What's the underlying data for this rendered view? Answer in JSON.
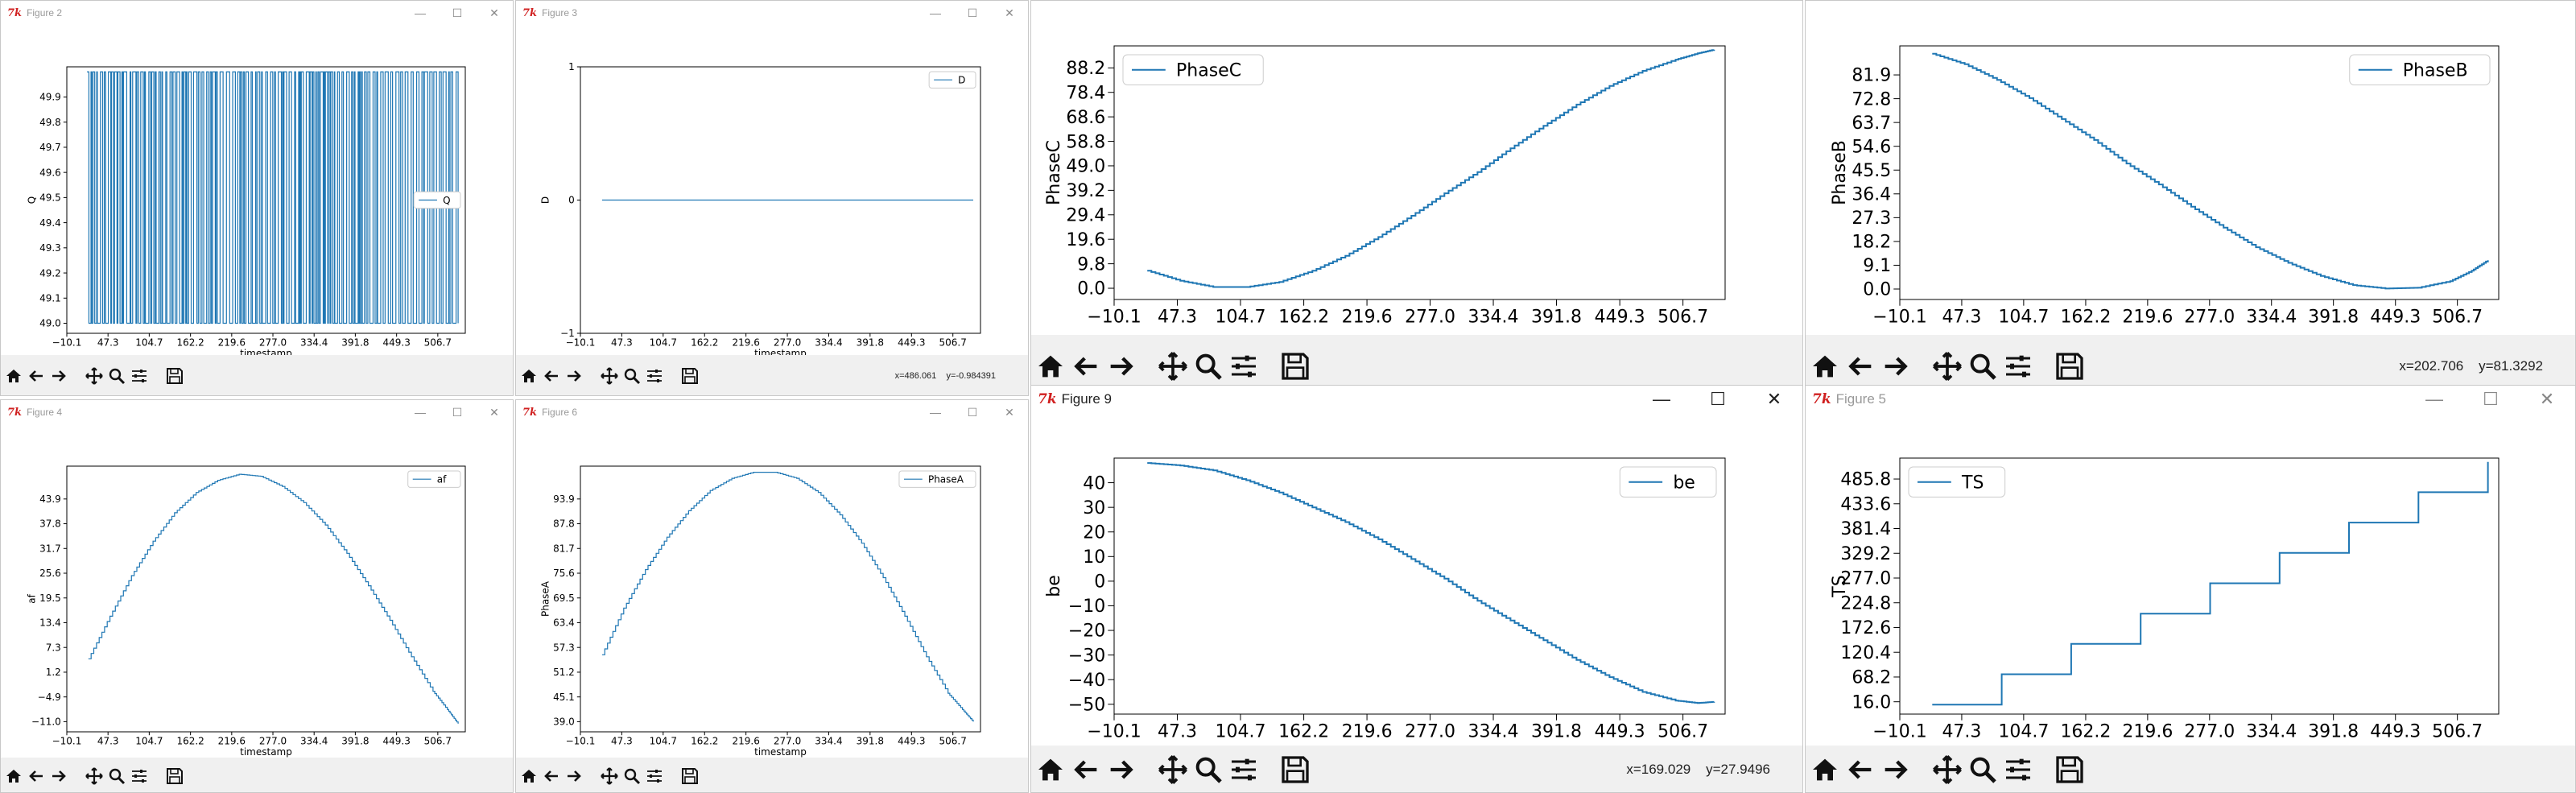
{
  "figures": [
    {
      "title": "Figure 2",
      "coords": "",
      "chart_data": {
        "type": "line",
        "legend_loc": "center-right",
        "xlabel": "timestamp",
        "ylabel": "Q",
        "xticks": [
          "−10.1",
          "47.3",
          "104.7",
          "162.2",
          "219.6",
          "277.0",
          "334.4",
          "391.8",
          "449.3",
          "506.7"
        ],
        "yticks": [
          "49.0",
          "49.1",
          "49.2",
          "49.3",
          "49.4",
          "49.5",
          "49.6",
          "49.7",
          "49.8",
          "49.9"
        ],
        "xlim": [
          -10.1,
          545
        ],
        "ylim": [
          48.96,
          50.02
        ],
        "series": [
          {
            "name": "Q",
            "shape": "square_toggle",
            "low": 49.0,
            "high": 50.0
          }
        ]
      }
    },
    {
      "title": "Figure 3",
      "coords": "x=486.061    y=-0.984391",
      "chart_data": {
        "type": "line",
        "legend_loc": "top-right",
        "xlabel": "timestamp",
        "ylabel": "D",
        "xticks": [
          "−10.1",
          "47.3",
          "104.7",
          "162.2",
          "219.6",
          "277.0",
          "334.4",
          "391.8",
          "449.3",
          "506.7"
        ],
        "yticks": [
          "−1",
          "0",
          "1"
        ],
        "xlim": [
          -10.1,
          545
        ],
        "ylim": [
          -1,
          1
        ],
        "series": [
          {
            "name": "D",
            "x": [
              20,
              535
            ],
            "y": [
              0,
              0
            ]
          }
        ]
      }
    },
    {
      "title": "",
      "coords": "",
      "chart_data": {
        "type": "line",
        "legend_loc": "top-left",
        "xlabel": "",
        "ylabel": "PhaseC",
        "xticks": [
          "−10.1",
          "47.3",
          "104.7",
          "162.2",
          "219.6",
          "277.0",
          "334.4",
          "391.8",
          "449.3",
          "506.7"
        ],
        "yticks": [
          "0.0",
          "9.8",
          "19.6",
          "29.4",
          "39.2",
          "49.0",
          "58.8",
          "68.6",
          "78.4",
          "88.2"
        ],
        "xlim": [
          -10.1,
          545
        ],
        "ylim": [
          -4.5,
          97
        ],
        "series": [
          {
            "name": "PhaseC",
            "x": [
              20,
              50,
              80,
              110,
              140,
              170,
              200,
              230,
              260,
              290,
              320,
              350,
              380,
              410,
              440,
              470,
              500,
              520,
              535
            ],
            "y": [
              7,
              3,
              0.5,
              0.5,
              2.5,
              7,
              13,
              20.5,
              29,
              38,
              46.5,
              56,
              65,
              73.5,
              81,
              87,
              91.5,
              94,
              95.5
            ]
          }
        ]
      }
    },
    {
      "title": "",
      "coords": "x=202.706    y=81.3292",
      "chart_data": {
        "type": "line",
        "legend_loc": "top-right",
        "xlabel": "",
        "ylabel": "PhaseB",
        "xticks": [
          "−10.1",
          "47.3",
          "104.7",
          "162.2",
          "219.6",
          "277.0",
          "334.4",
          "391.8",
          "449.3",
          "506.7"
        ],
        "yticks": [
          "0.0",
          "9.1",
          "18.2",
          "27.3",
          "36.4",
          "45.5",
          "54.6",
          "63.7",
          "72.8",
          "81.9"
        ],
        "xlim": [
          -10.1,
          545
        ],
        "ylim": [
          -4,
          93
        ],
        "series": [
          {
            "name": "PhaseB",
            "x": [
              20,
              50,
              80,
              110,
              140,
              170,
              200,
              230,
              260,
              290,
              320,
              350,
              380,
              410,
              440,
              470,
              500,
              520,
              535
            ],
            "y": [
              90,
              86,
              80,
              73,
              65,
              57,
              48,
              40,
              31.5,
              23.5,
              16,
              10,
              5,
              1.5,
              0.2,
              0.5,
              3,
              7,
              11
            ]
          }
        ]
      }
    },
    {
      "title": "Figure 4",
      "coords": "",
      "chart_data": {
        "type": "line",
        "legend_loc": "top-right",
        "xlabel": "timestamp",
        "ylabel": "af",
        "xticks": [
          "−10.1",
          "47.3",
          "104.7",
          "162.2",
          "219.6",
          "277.0",
          "334.4",
          "391.8",
          "449.3",
          "506.7"
        ],
        "yticks": [
          "−11.0",
          "−4.9",
          "1.2",
          "7.3",
          "13.4",
          "19.5",
          "25.6",
          "31.7",
          "37.8",
          "43.9"
        ],
        "xlim": [
          -10.1,
          545
        ],
        "ylim": [
          -13.5,
          52
        ],
        "series": [
          {
            "name": "af",
            "x": [
              20,
              50,
              80,
              110,
              140,
              170,
              200,
              230,
              260,
              290,
              320,
              350,
              380,
              410,
              440,
              470,
              500,
              520,
              535
            ],
            "y": [
              4.5,
              15,
              25,
              33.5,
              40.5,
              45.5,
              48.5,
              50,
              49.5,
              47,
              43,
              37.5,
              30.5,
              22.5,
              14,
              5,
              -3.5,
              -8,
              -11.5
            ]
          }
        ]
      }
    },
    {
      "title": "Figure 6",
      "coords": "",
      "chart_data": {
        "type": "line",
        "legend_loc": "top-right",
        "xlabel": "timestamp",
        "ylabel": "PhaseA",
        "xticks": [
          "−10.1",
          "47.3",
          "104.7",
          "162.2",
          "219.6",
          "277.0",
          "334.4",
          "391.8",
          "449.3",
          "506.7"
        ],
        "yticks": [
          "39.0",
          "45.1",
          "51.2",
          "57.3",
          "63.4",
          "69.5",
          "75.6",
          "81.7",
          "87.8",
          "93.9"
        ],
        "xlim": [
          -10.1,
          545
        ],
        "ylim": [
          36.5,
          102
        ],
        "series": [
          {
            "name": "PhaseA",
            "x": [
              20,
              50,
              80,
              110,
              140,
              170,
              200,
              230,
              260,
              290,
              320,
              350,
              380,
              410,
              440,
              470,
              500,
              520,
              535
            ],
            "y": [
              55.5,
              67,
              76.5,
              84.5,
              91,
              96,
              99,
              100.5,
              100.5,
              99,
              95.5,
              90,
              83,
              74.5,
              65,
              55,
              46,
              42,
              39
            ]
          }
        ]
      }
    },
    {
      "title": "Figure 9",
      "coords": "x=169.029    y=27.9496",
      "chart_data": {
        "type": "line",
        "legend_loc": "top-right",
        "xlabel": "",
        "ylabel": "be",
        "xticks": [
          "−10.1",
          "47.3",
          "104.7",
          "162.2",
          "219.6",
          "277.0",
          "334.4",
          "391.8",
          "449.3",
          "506.7"
        ],
        "yticks": [
          "−50",
          "−40",
          "−30",
          "−20",
          "−10",
          "0",
          "10",
          "20",
          "30",
          "40"
        ],
        "xlim": [
          -10.1,
          545
        ],
        "ylim": [
          -54,
          50
        ],
        "series": [
          {
            "name": "be",
            "x": [
              20,
              50,
              80,
              110,
              140,
              170,
              200,
              230,
              260,
              290,
              320,
              350,
              380,
              410,
              440,
              470,
              500,
              520,
              535
            ],
            "y": [
              48,
              47,
              45,
              41,
              36,
              30,
              24,
              17,
              9,
              1,
              -8,
              -16,
              -24,
              -32,
              -39,
              -45,
              -48.5,
              -49.5,
              -49
            ]
          }
        ]
      }
    },
    {
      "title": "Figure 5",
      "coords": "",
      "chart_data": {
        "type": "line",
        "legend_loc": "top-left",
        "xlabel": "",
        "ylabel": "TS",
        "xticks": [
          "−10.1",
          "47.3",
          "104.7",
          "162.2",
          "219.6",
          "277.0",
          "334.4",
          "391.8",
          "449.3",
          "506.7"
        ],
        "yticks": [
          "16.0",
          "68.2",
          "120.4",
          "172.6",
          "224.8",
          "277.0",
          "329.2",
          "381.4",
          "433.6",
          "485.8"
        ],
        "xlim": [
          -10.1,
          545
        ],
        "ylim": [
          -10,
          530
        ],
        "series": [
          {
            "name": "TS",
            "x": [
              20,
              535
            ],
            "y": [
              10,
              522
            ]
          }
        ]
      }
    }
  ]
}
